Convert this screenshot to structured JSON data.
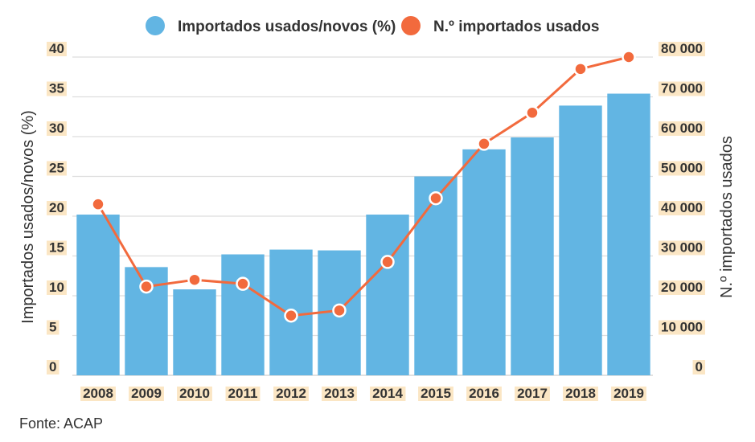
{
  "chart_data": {
    "type": "bar",
    "title": "",
    "categories": [
      "2008",
      "2009",
      "2010",
      "2011",
      "2012",
      "2013",
      "2014",
      "2015",
      "2016",
      "2017",
      "2018",
      "2019"
    ],
    "series": [
      {
        "name": "Importados usados/novos (%)",
        "type": "bar",
        "axis": "left",
        "color": "#62b5e3",
        "values": [
          20.2,
          13.6,
          10.8,
          15.2,
          15.8,
          15.7,
          20.2,
          25.0,
          28.4,
          29.9,
          33.9,
          35.4
        ]
      },
      {
        "name": "N.º importados usados",
        "type": "line",
        "axis": "right",
        "color": "#f26a3d",
        "values": [
          43000,
          22300,
          24000,
          23000,
          15000,
          16300,
          28500,
          44500,
          58200,
          66000,
          77000,
          80000
        ]
      }
    ],
    "ylabel": "Importados usados/novos (%)",
    "ylim": [
      0,
      40
    ],
    "yticks": [
      "0",
      "5",
      "10",
      "15",
      "20",
      "25",
      "30",
      "35",
      "40"
    ],
    "y2label": "N.º importados usados",
    "y2lim": [
      0,
      80000
    ],
    "y2ticks": [
      "0",
      "10 000",
      "20 000",
      "30 000",
      "40 000",
      "50 000",
      "60 000",
      "70 000",
      "80 000"
    ],
    "grid": true,
    "legend_position": "top",
    "tick_highlight_color": "#fbe6c4"
  },
  "source": "Fonte: ACAP"
}
